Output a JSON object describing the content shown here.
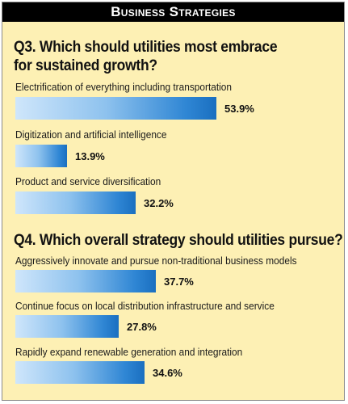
{
  "header": {
    "title": "Business Strategies"
  },
  "colors": {
    "panel_bg": "#fdf0b4",
    "header_bg": "#000000",
    "bar_start": "#cfe6fb",
    "bar_end": "#1a6fc0"
  },
  "chart_data": [
    {
      "type": "bar",
      "orientation": "horizontal",
      "title_lines": [
        "Q3. Which should utilities most embrace",
        "for sustained growth?"
      ],
      "categories": [
        "Electrification of everything including transportation",
        "Digitization and artificial intelligence",
        "Product and service diversification"
      ],
      "values": [
        53.9,
        13.9,
        32.2
      ],
      "value_labels": [
        "53.9%",
        "13.9%",
        "32.2%"
      ],
      "unit": "%",
      "xlim": [
        0,
        100
      ]
    },
    {
      "type": "bar",
      "orientation": "horizontal",
      "title_lines": [
        "Q4. Which overall strategy should utilities pursue?"
      ],
      "categories": [
        "Aggressively innovate and pursue non-traditional business models",
        "Continue focus on local distribution infrastructure and service",
        "Rapidly expand renewable generation and integration"
      ],
      "values": [
        37.7,
        27.8,
        34.6
      ],
      "value_labels": [
        "37.7%",
        "27.8%",
        "34.6%"
      ],
      "unit": "%",
      "xlim": [
        0,
        100
      ]
    }
  ]
}
